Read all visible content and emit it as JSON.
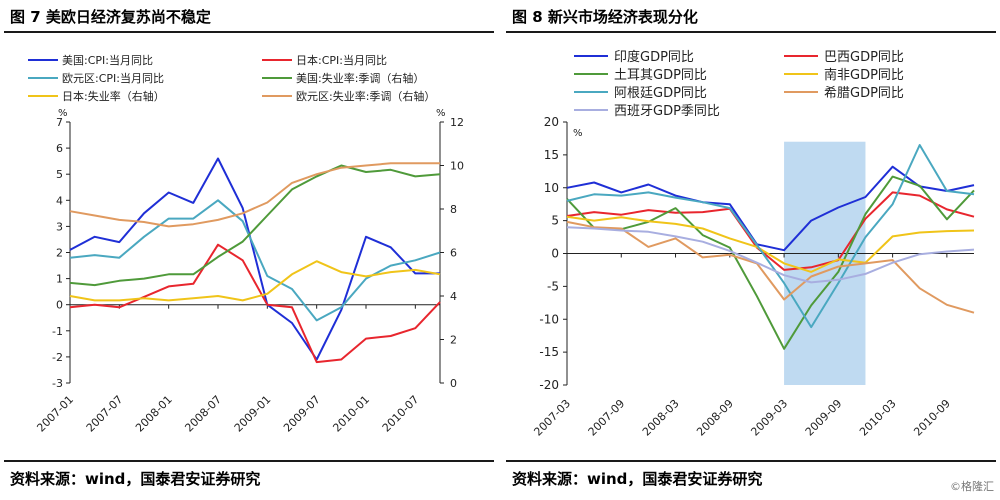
{
  "left": {
    "title": "图 7  美欧日经济复苏尚不稳定",
    "source": "资料来源：wind，国泰君安证券研究",
    "chart_data": {
      "type": "line",
      "x": [
        "2007-01",
        "2007-04",
        "2007-07",
        "2007-10",
        "2008-01",
        "2008-04",
        "2008-07",
        "2008-10",
        "2009-01",
        "2009-04",
        "2009-07",
        "2009-10",
        "2010-01",
        "2010-04",
        "2010-07",
        "2010-10"
      ],
      "x_tick_labels": [
        "2007-01",
        "2007-07",
        "2008-01",
        "2008-07",
        "2009-01",
        "2009-07",
        "2010-01",
        "2010-07"
      ],
      "left_axis": {
        "unit": "%",
        "ylim": [
          -3,
          7
        ],
        "ticks": [
          "-3",
          "-2",
          "-1",
          "0",
          "1",
          "2",
          "3",
          "4",
          "5",
          "6",
          "7"
        ]
      },
      "right_axis": {
        "unit": "%",
        "ylim": [
          0,
          12
        ],
        "ticks": [
          "0",
          "2",
          "4",
          "6",
          "8",
          "10",
          "12"
        ]
      },
      "grid": false,
      "legend_position": "top",
      "series": [
        {
          "name": "美国:CPI:当月同比",
          "axis": "left",
          "color": "#1f2fd6",
          "values": [
            2.1,
            2.6,
            2.4,
            3.5,
            4.3,
            3.9,
            5.6,
            3.7,
            0.0,
            -0.7,
            -2.1,
            -0.2,
            2.6,
            2.2,
            1.2,
            1.2
          ]
        },
        {
          "name": "日本:CPI:当月同比",
          "axis": "left",
          "color": "#e8262e",
          "values": [
            -0.1,
            0.0,
            -0.1,
            0.3,
            0.7,
            0.8,
            2.3,
            1.7,
            0.0,
            -0.1,
            -2.2,
            -2.1,
            -1.3,
            -1.2,
            -0.9,
            0.1
          ]
        },
        {
          "name": "欧元区:CPI:当月同比",
          "axis": "left",
          "color": "#4aa8c0",
          "values": [
            1.8,
            1.9,
            1.8,
            2.6,
            3.3,
            3.3,
            4.0,
            3.2,
            1.1,
            0.6,
            -0.6,
            -0.1,
            1.0,
            1.5,
            1.7,
            2.0
          ]
        },
        {
          "name": "美国:失业率:季调（右轴）",
          "axis": "right",
          "color": "#4f9a3a",
          "values": [
            4.6,
            4.5,
            4.7,
            4.8,
            5.0,
            5.0,
            5.8,
            6.5,
            7.7,
            8.9,
            9.5,
            10.0,
            9.7,
            9.8,
            9.5,
            9.6
          ]
        },
        {
          "name": "日本:失业率（右轴）",
          "axis": "right",
          "color": "#f0c419",
          "values": [
            4.0,
            3.8,
            3.8,
            3.9,
            3.8,
            3.9,
            4.0,
            3.8,
            4.1,
            5.0,
            5.6,
            5.1,
            4.9,
            5.1,
            5.2,
            5.0
          ]
        },
        {
          "name": "欧元区:失业率:季调（右轴）",
          "axis": "right",
          "color": "#e09a60",
          "values": [
            7.9,
            7.7,
            7.5,
            7.4,
            7.2,
            7.3,
            7.5,
            7.8,
            8.3,
            9.2,
            9.6,
            9.9,
            10.0,
            10.1,
            10.1,
            10.1
          ]
        }
      ]
    }
  },
  "right": {
    "title": "图 8  新兴市场经济表现分化",
    "source": "资料来源：wind，国泰君安证券研究",
    "watermark": "©格隆汇",
    "chart_data": {
      "type": "line",
      "x": [
        "2007-03",
        "2007-06",
        "2007-09",
        "2007-12",
        "2008-03",
        "2008-06",
        "2008-09",
        "2008-12",
        "2009-03",
        "2009-06",
        "2009-09",
        "2009-12",
        "2010-03",
        "2010-06",
        "2010-09",
        "2010-12"
      ],
      "x_tick_labels": [
        "2007-03",
        "2007-09",
        "2008-03",
        "2008-09",
        "2009-03",
        "2009-09",
        "2010-03",
        "2010-09"
      ],
      "y_axis": {
        "unit": "%",
        "ylim": [
          -20,
          20
        ],
        "ticks": [
          "-20",
          "-15",
          "-10",
          "-5",
          "0",
          "5",
          "10",
          "15",
          "20"
        ]
      },
      "grid": false,
      "legend_position": "top",
      "shaded_region": {
        "from": "2009-03",
        "to": "2009-12",
        "color": "#b4d3ee"
      },
      "series": [
        {
          "name": "印度GDP同比",
          "color": "#1f2fd6",
          "values": [
            10.0,
            10.8,
            9.3,
            10.5,
            8.8,
            7.8,
            7.5,
            1.4,
            0.5,
            5.0,
            7.0,
            8.6,
            13.2,
            10.2,
            9.5,
            10.4
          ]
        },
        {
          "name": "巴西GDP同比",
          "color": "#e8262e",
          "values": [
            5.7,
            6.3,
            5.9,
            6.6,
            6.2,
            6.3,
            6.8,
            0.9,
            -2.5,
            -2.1,
            -1.0,
            5.3,
            9.3,
            8.8,
            6.7,
            5.6
          ]
        },
        {
          "name": "土耳其GDP同比",
          "color": "#4f9a3a",
          "values": [
            8.3,
            3.9,
            3.7,
            4.8,
            6.9,
            2.8,
            0.9,
            -6.5,
            -14.5,
            -7.9,
            -2.8,
            6.0,
            11.7,
            10.3,
            5.2,
            9.6
          ]
        },
        {
          "name": "南非GDP同比",
          "color": "#f0c419",
          "values": [
            5.6,
            5.0,
            5.5,
            4.9,
            4.5,
            3.8,
            2.3,
            1.0,
            -1.5,
            -2.8,
            -0.9,
            -1.4,
            2.6,
            3.2,
            3.4,
            3.5
          ]
        },
        {
          "name": "阿根廷GDP同比",
          "color": "#4aa8c0",
          "values": [
            8.0,
            9.0,
            8.8,
            9.3,
            8.5,
            7.8,
            6.9,
            1.3,
            -4.5,
            -11.2,
            -4.5,
            2.5,
            7.5,
            16.5,
            9.5,
            9.0
          ]
        },
        {
          "name": "希腊GDP同比",
          "color": "#e09a60",
          "values": [
            4.8,
            4.0,
            3.8,
            1.0,
            2.3,
            -0.6,
            -0.2,
            -1.5,
            -7.0,
            -3.5,
            -2.0,
            -1.5,
            -1.0,
            -5.3,
            -7.8,
            -9.0
          ]
        },
        {
          "name": "西班牙GDP季同比",
          "color": "#a8aee0",
          "values": [
            4.0,
            3.8,
            3.5,
            3.3,
            2.6,
            1.8,
            0.4,
            -1.4,
            -3.3,
            -4.4,
            -4.0,
            -3.1,
            -1.4,
            -0.1,
            0.3,
            0.6
          ]
        }
      ]
    }
  }
}
